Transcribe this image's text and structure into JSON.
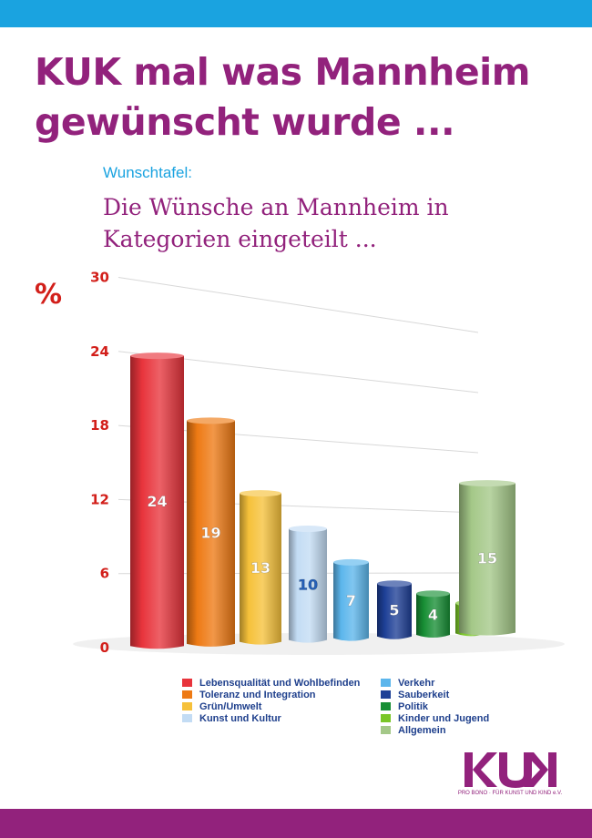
{
  "header": {
    "title": "KUK mal was Mannheim gewünscht wurde ...",
    "subhead": "Wunschtafel:",
    "subtitle": "Die Wünsche an Mannheim in Kategorien eingeteilt ..."
  },
  "chart_data": {
    "type": "bar",
    "title": "Die Wünsche an Mannheim in Kategorien eingeteilt ...",
    "ylabel": "%",
    "xlabel": "",
    "ylim": [
      0,
      30
    ],
    "yticks": [
      0,
      6,
      12,
      18,
      24,
      30
    ],
    "grid": true,
    "legend_position": "bottom",
    "categories": [
      "Lebensqualität und Wohlbefinden",
      "Toleranz und Integration",
      "Grün/Umwelt",
      "Kunst und Kultur",
      "Verkehr",
      "Sauberkeit",
      "Politik",
      "Kinder und Jugend",
      "Allgemein"
    ],
    "values": [
      24,
      19,
      13,
      10,
      7,
      5,
      4,
      3,
      15
    ],
    "colors": [
      "#e8343c",
      "#ee7a14",
      "#f6c13a",
      "#c3dcf4",
      "#5cb6ec",
      "#1d3f96",
      "#178e34",
      "#7ac628",
      "#a4c888"
    ],
    "label_colors": [
      "#ffffff",
      "#ffffff",
      "#ffffff",
      "#2560b8",
      "#ffffff",
      "#ffffff",
      "#ffffff",
      "#ffffff",
      "#ffffff"
    ]
  },
  "footer": {
    "logo_text": "KUK",
    "tagline": "PRO BONO · FÜR KUNST UND KIND e.V."
  }
}
